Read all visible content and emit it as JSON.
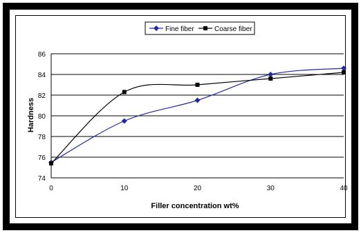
{
  "chart_data": {
    "type": "line",
    "title": "",
    "xlabel": "Filler concentration wt%",
    "ylabel": "Hardness",
    "x": [
      0,
      10,
      20,
      30,
      40
    ],
    "xlim": [
      0,
      40
    ],
    "ylim": [
      74,
      86
    ],
    "x_ticks": [
      "0",
      "10",
      "20",
      "30",
      "40"
    ],
    "y_ticks": [
      "74",
      "76",
      "78",
      "80",
      "82",
      "84",
      "86"
    ],
    "grid": "horizontal",
    "legend_position": "top",
    "series": [
      {
        "name": "Fine fiber",
        "values": [
          75.5,
          79.5,
          81.5,
          84.0,
          84.6
        ],
        "color": "#1f2a9e",
        "marker": "diamond"
      },
      {
        "name": "Coarse fiber",
        "values": [
          75.4,
          82.3,
          83.0,
          83.6,
          84.2
        ],
        "color": "#000000",
        "marker": "square"
      }
    ]
  }
}
